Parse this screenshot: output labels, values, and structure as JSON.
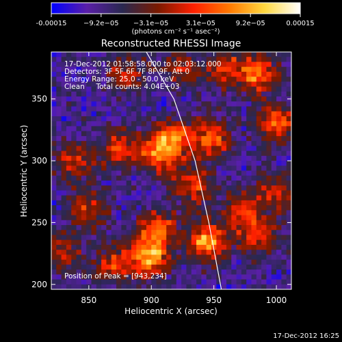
{
  "chart_data": {
    "type": "heatmap",
    "title": "Reconstructed RHESSI Image",
    "xlabel": "Heliocentric X (arcsec)",
    "ylabel": "Heliocentric Y (arcsec)",
    "xlim": [
      820,
      1012
    ],
    "ylim": [
      196,
      388
    ],
    "x_ticks": [
      850,
      900,
      950,
      1000
    ],
    "y_ticks": [
      200,
      250,
      300,
      350
    ],
    "colorbar": {
      "range": [
        -0.00015,
        0.00015
      ],
      "tick_labels": [
        "-0.00015",
        "−9.2e−05",
        "−3.1e−05",
        "3.1e−05",
        "9.2e−05",
        "0.00015"
      ],
      "units": "(photons cm⁻² s⁻¹ asec⁻²)",
      "colors": [
        "#0000ff",
        "#5a1fa8",
        "#2a2850",
        "#7a1a00",
        "#ff2000",
        "#ff7800",
        "#ffd840",
        "#ffffff"
      ]
    },
    "annotations": [
      "17-Dec-2012 01:58:58.000 to 02:03:12.000",
      "Detectors: 3F 5F 6F 7F 8F 9F, Att 0",
      "Energy Range: 25.0 - 50.0 keV",
      "Clean     Total counts: 4.04E+03"
    ],
    "peak_label": "Position of Peak = [943,234]",
    "limb_curve": [
      [
        896,
        388
      ],
      [
        918,
        350
      ],
      [
        935,
        300
      ],
      [
        946,
        250
      ],
      [
        956,
        196
      ]
    ],
    "hotspots": [
      {
        "x": 945,
        "y": 235,
        "strength": 1.0
      },
      {
        "x": 898,
        "y": 222,
        "strength": 0.95
      },
      {
        "x": 905,
        "y": 245,
        "strength": 0.75
      },
      {
        "x": 918,
        "y": 318,
        "strength": 0.75
      },
      {
        "x": 905,
        "y": 305,
        "strength": 0.7
      },
      {
        "x": 948,
        "y": 318,
        "strength": 0.75
      },
      {
        "x": 933,
        "y": 280,
        "strength": 0.65
      },
      {
        "x": 985,
        "y": 240,
        "strength": 0.65
      },
      {
        "x": 1000,
        "y": 330,
        "strength": 0.7
      },
      {
        "x": 985,
        "y": 370,
        "strength": 0.8
      },
      {
        "x": 848,
        "y": 260,
        "strength": 0.6
      },
      {
        "x": 838,
        "y": 300,
        "strength": 0.55
      },
      {
        "x": 875,
        "y": 310,
        "strength": 0.6
      },
      {
        "x": 870,
        "y": 215,
        "strength": 0.6
      },
      {
        "x": 1000,
        "y": 275,
        "strength": 0.55
      },
      {
        "x": 960,
        "y": 375,
        "strength": 0.55
      },
      {
        "x": 925,
        "y": 375,
        "strength": 0.5
      },
      {
        "x": 880,
        "y": 370,
        "strength": 0.5
      },
      {
        "x": 830,
        "y": 225,
        "strength": 0.45
      },
      {
        "x": 972,
        "y": 262,
        "strength": 0.55
      }
    ]
  },
  "timestamp": "17-Dec-2012 16:25"
}
